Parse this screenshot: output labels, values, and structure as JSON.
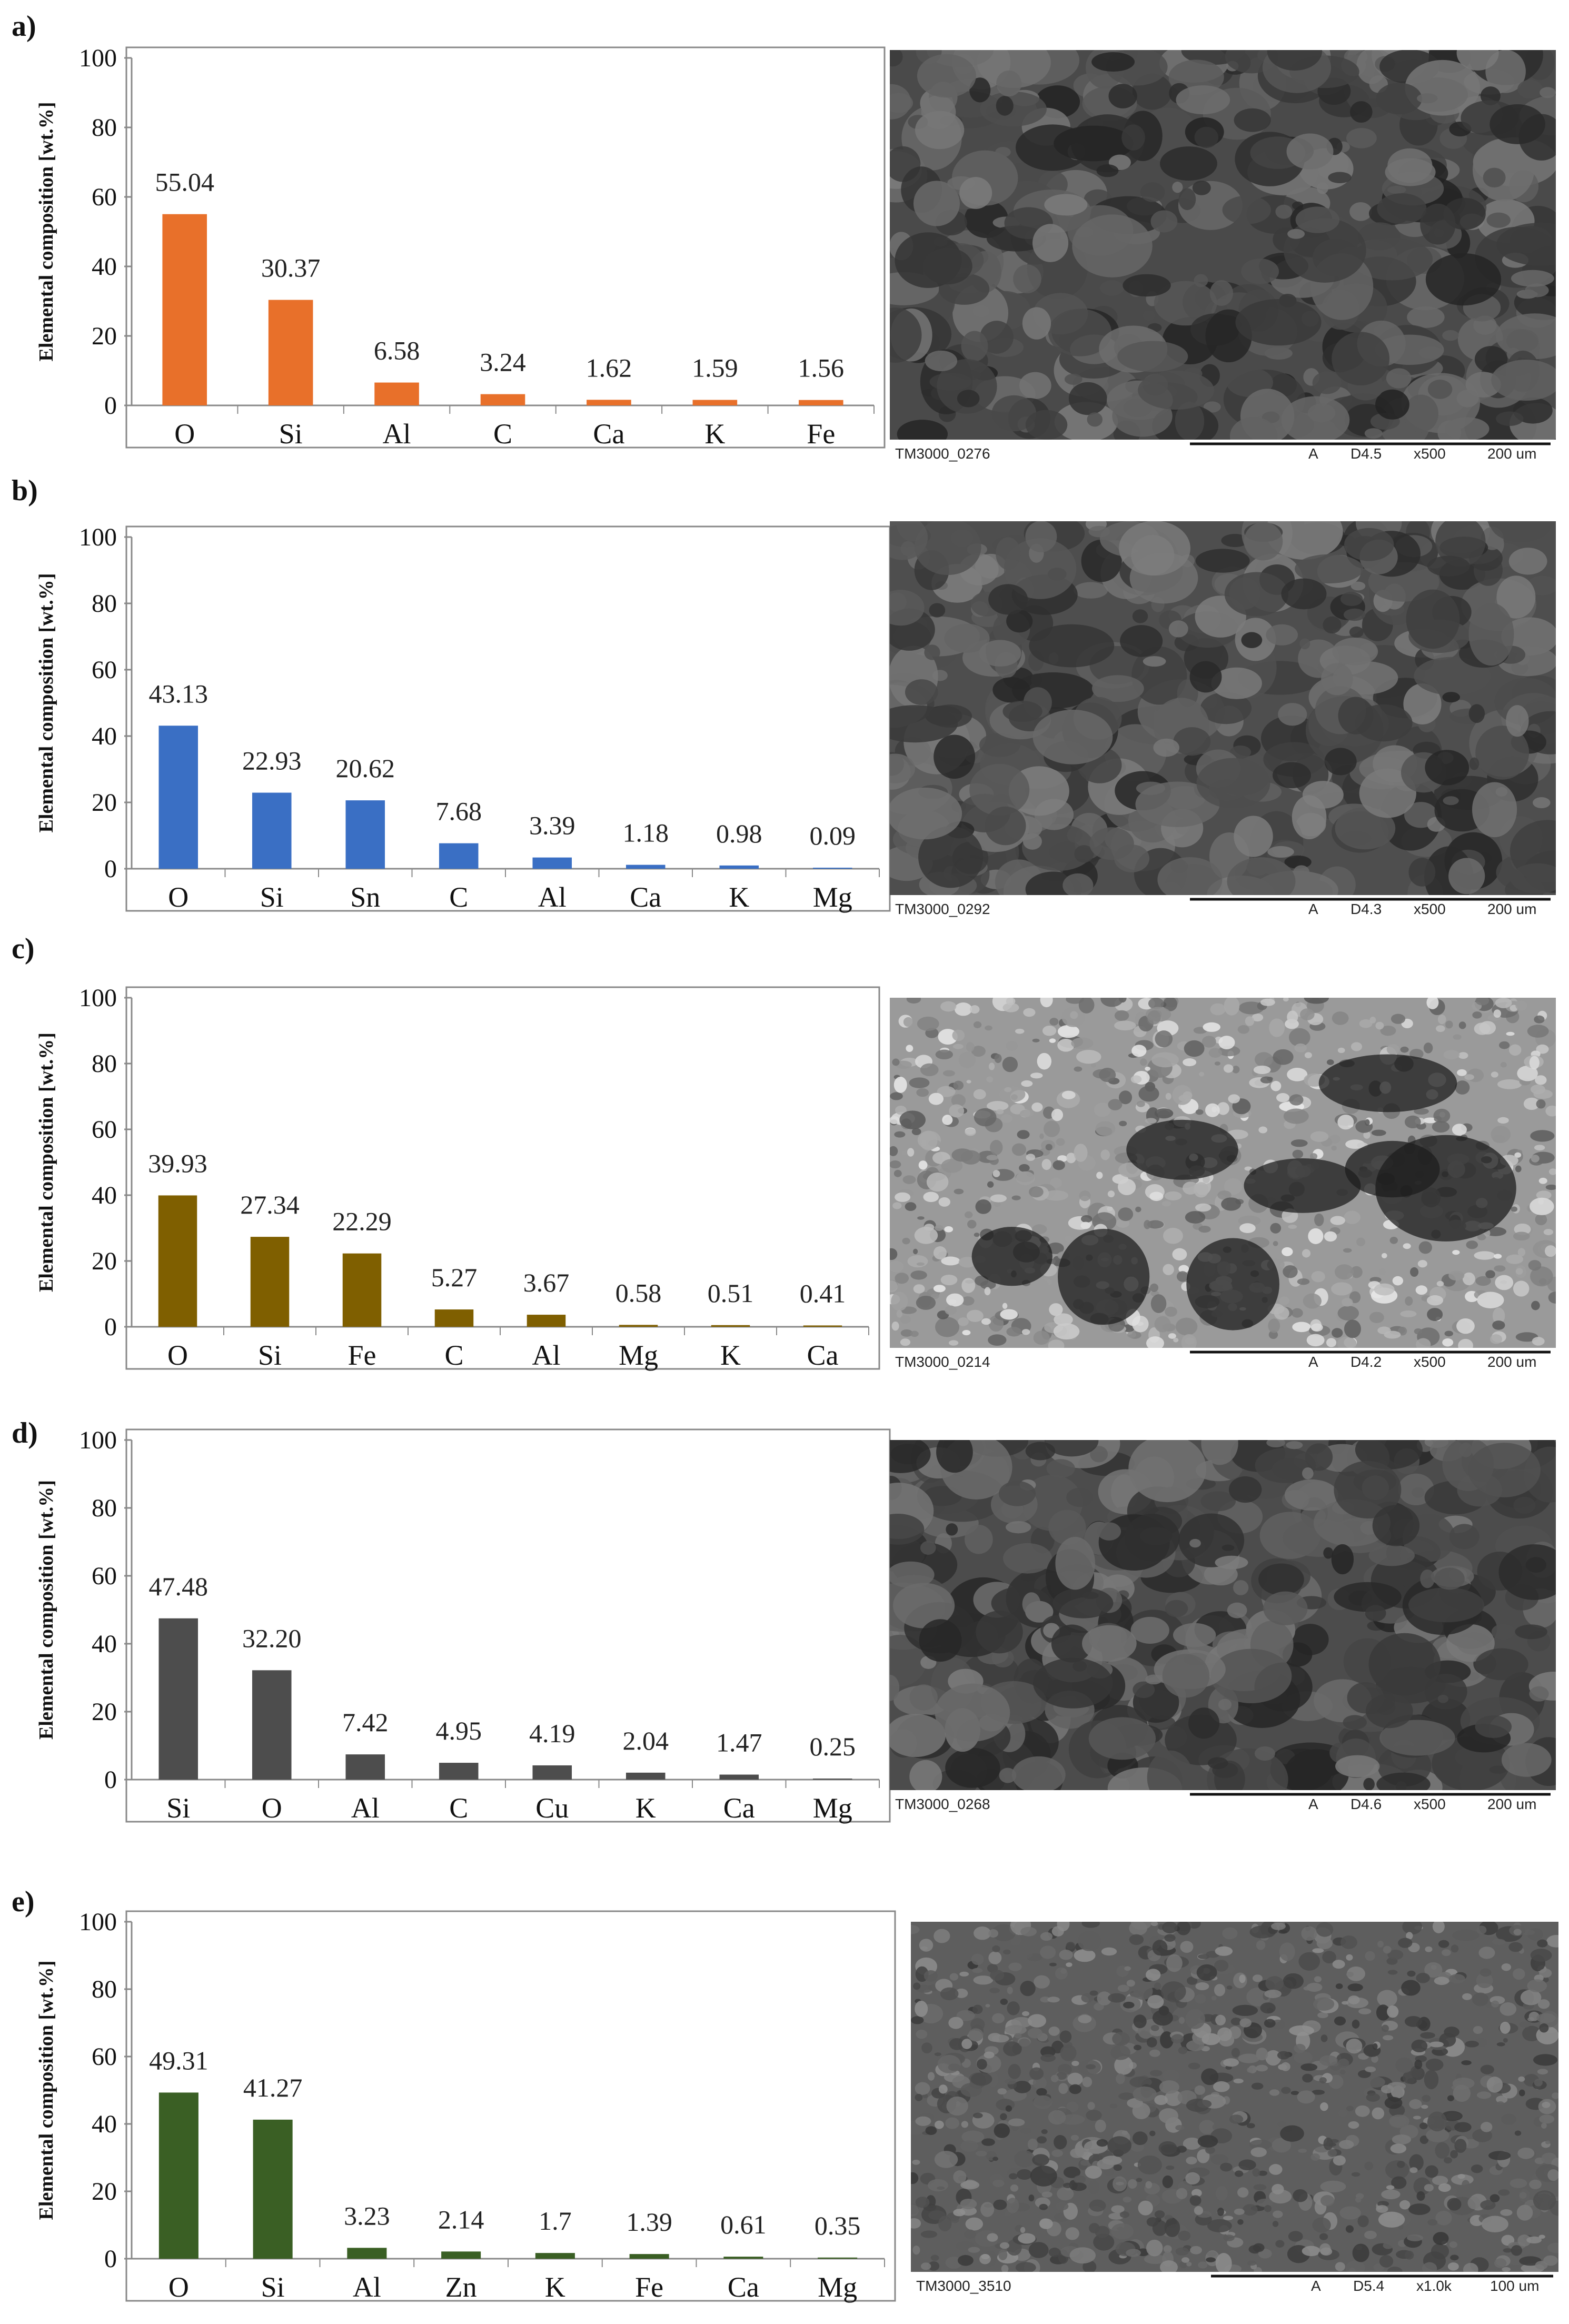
{
  "chart_data": [
    {
      "type": "bar",
      "panel": "a)",
      "categories": [
        "O",
        "Si",
        "Al",
        "C",
        "Ca",
        "K",
        "Fe"
      ],
      "values": [
        55.04,
        30.37,
        6.58,
        3.24,
        1.62,
        1.59,
        1.56
      ],
      "labels": [
        "55.04",
        "30.37",
        "6.58",
        "3.24",
        "1.62",
        "1.59",
        "1.56"
      ],
      "ylabel": "Elemental composition [wt.%]",
      "ylim": [
        0,
        100
      ],
      "yticks": [
        "0",
        "20",
        "40",
        "60",
        "80",
        "100"
      ],
      "color": "#e8702a",
      "sem": {
        "id": "TM3000_0276",
        "mode": "A",
        "wd": "D4.5",
        "mag": "x500",
        "scale": "200 um",
        "tone": "#4a4a4a"
      }
    },
    {
      "type": "bar",
      "panel": "b)",
      "categories": [
        "O",
        "Si",
        "Sn",
        "C",
        "Al",
        "Ca",
        "K",
        "Mg"
      ],
      "values": [
        43.13,
        22.93,
        20.62,
        7.68,
        3.39,
        1.18,
        0.98,
        0.09
      ],
      "labels": [
        "43.13",
        "22.93",
        "20.62",
        "7.68",
        "3.39",
        "1.18",
        "0.98",
        "0.09"
      ],
      "ylabel": "Elemental composition [wt.%]",
      "ylim": [
        0,
        100
      ],
      "yticks": [
        "0",
        "20",
        "40",
        "60",
        "80",
        "100"
      ],
      "color": "#3a6fc4",
      "sem": {
        "id": "TM3000_0292",
        "mode": "A",
        "wd": "D4.3",
        "mag": "x500",
        "scale": "200 um",
        "tone": "#4e4e4e"
      }
    },
    {
      "type": "bar",
      "panel": "c)",
      "categories": [
        "O",
        "Si",
        "Fe",
        "C",
        "Al",
        "Mg",
        "K",
        "Ca"
      ],
      "values": [
        39.93,
        27.34,
        22.29,
        5.27,
        3.67,
        0.58,
        0.51,
        0.41
      ],
      "labels": [
        "39.93",
        "27.34",
        "22.29",
        "5.27",
        "3.67",
        "0.58",
        "0.51",
        "0.41"
      ],
      "ylabel": "Elemental composition [wt.%]",
      "ylim": [
        0,
        100
      ],
      "yticks": [
        "0",
        "20",
        "40",
        "60",
        "80",
        "100"
      ],
      "color": "#7f5f00",
      "sem": {
        "id": "TM3000_0214",
        "mode": "A",
        "wd": "D4.2",
        "mag": "x500",
        "scale": "200 um",
        "tone": "#9a9a9a"
      }
    },
    {
      "type": "bar",
      "panel": "d)",
      "categories": [
        "Si",
        "O",
        "Al",
        "C",
        "Cu",
        "K",
        "Ca",
        "Mg"
      ],
      "values": [
        47.48,
        32.2,
        7.42,
        4.95,
        4.19,
        2.04,
        1.47,
        0.25
      ],
      "labels": [
        "47.48",
        "32.20",
        "7.42",
        "4.95",
        "4.19",
        "2.04",
        "1.47",
        "0.25"
      ],
      "ylabel": "Elemental composition [wt.%]",
      "ylim": [
        0,
        100
      ],
      "yticks": [
        "0",
        "20",
        "40",
        "60",
        "80",
        "100"
      ],
      "color": "#4d4d4d",
      "sem": {
        "id": "TM3000_0268",
        "mode": "A",
        "wd": "D4.6",
        "mag": "x500",
        "scale": "200 um",
        "tone": "#4c4c4c"
      }
    },
    {
      "type": "bar",
      "panel": "e)",
      "categories": [
        "O",
        "Si",
        "Al",
        "Zn",
        "K",
        "Fe",
        "Ca",
        "Mg"
      ],
      "values": [
        49.31,
        41.27,
        3.23,
        2.14,
        1.7,
        1.39,
        0.61,
        0.35
      ],
      "labels": [
        "49.31",
        "41.27",
        "3.23",
        "2.14",
        "1.7",
        "1.39",
        "0.61",
        "0.35"
      ],
      "ylabel": "Elemental composition [wt.%]",
      "ylim": [
        0,
        100
      ],
      "yticks": [
        "0",
        "20",
        "40",
        "60",
        "80",
        "100"
      ],
      "color": "#3a5f24",
      "sem": {
        "id": "TM3000_3510",
        "mode": "A",
        "wd": "D5.4",
        "mag": "x1.0k",
        "scale": "100 um",
        "tone": "#5e5e5e"
      }
    }
  ]
}
